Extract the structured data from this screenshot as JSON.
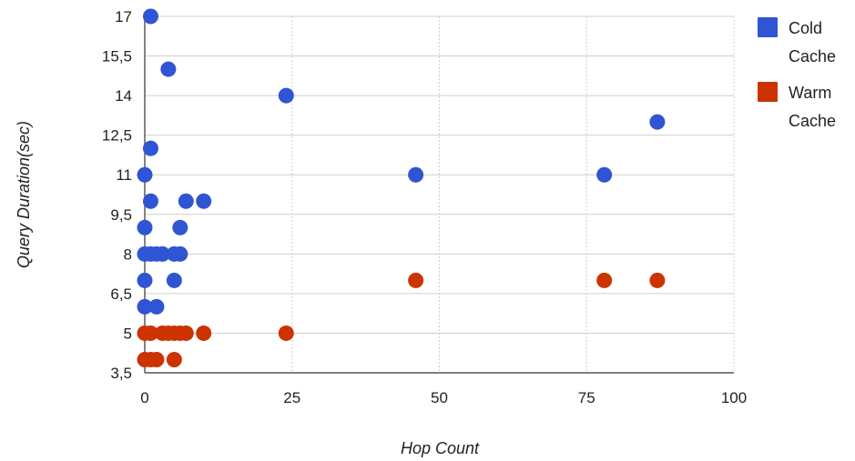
{
  "colors": {
    "cold": "#2f55d4",
    "warm": "#cc3300",
    "grid": "#cfcfcf",
    "axis": "#333333"
  },
  "chart_data": {
    "type": "scatter",
    "xlabel": "Hop Count",
    "ylabel": "Query Duration(sec)",
    "xlim": [
      0,
      100
    ],
    "ylim": [
      3.5,
      17
    ],
    "x_ticks": [
      "0",
      "25",
      "50",
      "75",
      "100"
    ],
    "x_tick_values": [
      0,
      25,
      50,
      75,
      100
    ],
    "y_ticks": [
      "3,5",
      "5",
      "6,5",
      "8",
      "9,5",
      "11",
      "12,5",
      "14",
      "15,5",
      "17"
    ],
    "y_tick_values": [
      3.5,
      5,
      6.5,
      8,
      9.5,
      11,
      12.5,
      14,
      15.5,
      17
    ],
    "grid": "vertical-dashed, horizontal-solid",
    "legend_position": "right",
    "legend": [
      {
        "label_line1": "Cold",
        "label_line2": "Cache",
        "color_key": "cold"
      },
      {
        "label_line1": "Warm",
        "label_line2": "Cache",
        "color_key": "warm"
      }
    ],
    "series": [
      {
        "color_key": "cold",
        "points": [
          [
            1,
            17
          ],
          [
            4,
            15
          ],
          [
            24,
            14
          ],
          [
            87,
            13
          ],
          [
            1,
            12
          ],
          [
            0,
            11
          ],
          [
            46,
            11
          ],
          [
            78,
            11
          ],
          [
            1,
            10
          ],
          [
            7,
            10
          ],
          [
            10,
            10
          ],
          [
            0,
            9
          ],
          [
            6,
            9
          ],
          [
            0,
            8
          ],
          [
            1,
            8
          ],
          [
            2,
            8
          ],
          [
            3,
            8
          ],
          [
            5,
            8
          ],
          [
            6,
            8
          ],
          [
            0,
            7
          ],
          [
            5,
            7
          ],
          [
            0,
            6
          ],
          [
            2,
            6
          ]
        ]
      },
      {
        "color_key": "warm",
        "points": [
          [
            46,
            7
          ],
          [
            78,
            7
          ],
          [
            87,
            7
          ],
          [
            0,
            5
          ],
          [
            1,
            5
          ],
          [
            3,
            5
          ],
          [
            4,
            5
          ],
          [
            5,
            5
          ],
          [
            6,
            5
          ],
          [
            7,
            5
          ],
          [
            10,
            5
          ],
          [
            24,
            5
          ],
          [
            0,
            4
          ],
          [
            1,
            4
          ],
          [
            2,
            4
          ],
          [
            5,
            4
          ]
        ]
      }
    ]
  }
}
